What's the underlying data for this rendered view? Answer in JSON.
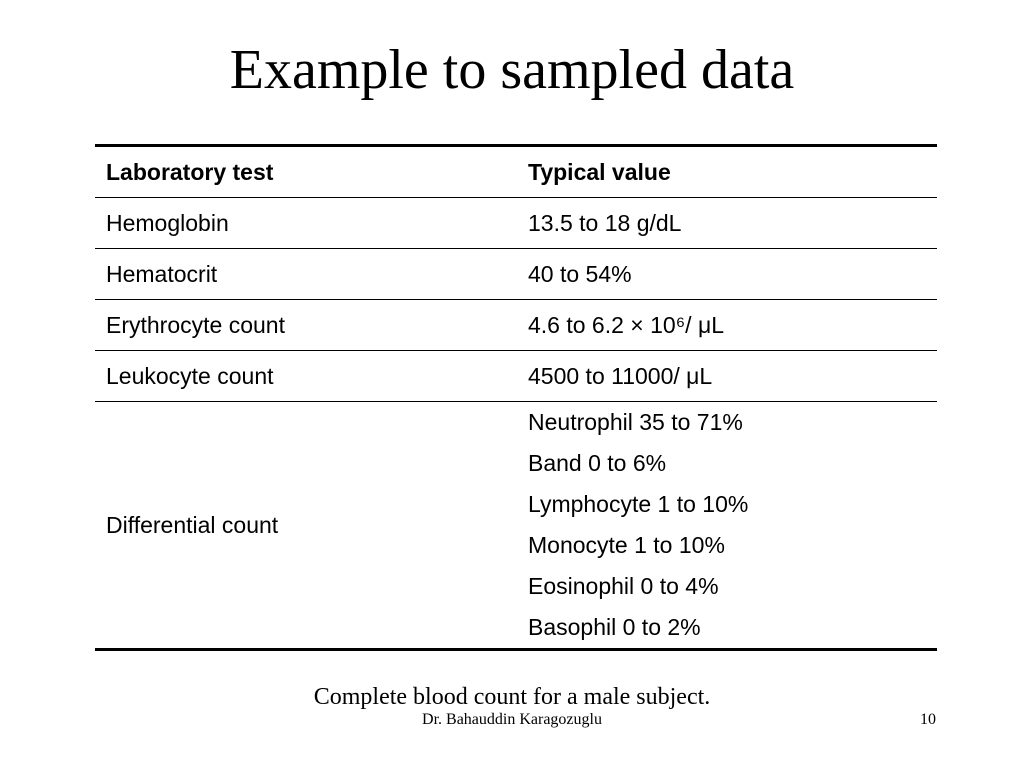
{
  "title": "Example to sampled data",
  "table": {
    "header": [
      "Laboratory test",
      "Typical value"
    ],
    "rows": [
      [
        "Hemoglobin",
        "13.5 to 18 g/dL"
      ],
      [
        "Hematocrit",
        "40 to 54%"
      ],
      [
        "Erythrocyte count",
        "4.6 to 6.2 × 10⁶/ μL"
      ],
      [
        "Leukocyte count",
        "4500 to 11000/ μL"
      ],
      [
        "Differential count",
        [
          "Neutrophil 35 to 71%",
          "Band 0 to 6%",
          "Lymphocyte 1 to 10%",
          "Monocyte 1 to 10%",
          "Eosinophil 0 to 4%",
          "Basophil 0 to 2%"
        ]
      ]
    ]
  },
  "caption": "Complete blood count for a male subject.",
  "footer": {
    "author": "Dr. Bahauddin Karagozuglu",
    "page": "10"
  }
}
